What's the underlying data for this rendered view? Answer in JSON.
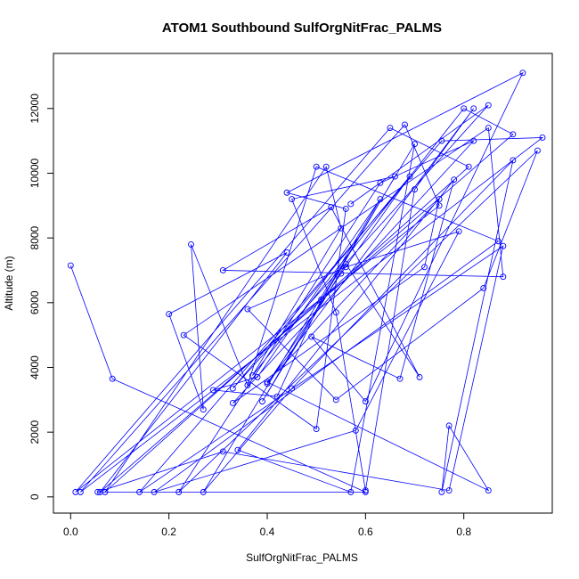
{
  "chart_data": {
    "type": "line",
    "title": "ATOM1 Southbound SulfOrgNitFrac_PALMS",
    "xlabel": "SulfOrgNitFrac_PALMS",
    "ylabel": "Altitude (m)",
    "xlim": [
      -0.035,
      0.98
    ],
    "ylim": [
      -500,
      13700
    ],
    "xticks": [
      0.0,
      0.2,
      0.4,
      0.6,
      0.8
    ],
    "xtick_labels": [
      "0.0",
      "0.2",
      "0.4",
      "0.6",
      "0.8"
    ],
    "yticks": [
      0,
      2000,
      4000,
      6000,
      8000,
      10000,
      12000
    ],
    "ytick_labels": [
      "0",
      "2000",
      "4000",
      "6000",
      "8000",
      "10000",
      "12000"
    ],
    "color": "#0000ff",
    "markers": "open-circle",
    "grid": false,
    "series": [
      {
        "x": [
          0.0,
          0.085,
          0.6,
          0.055,
          0.31,
          0.77,
          0.88,
          0.14,
          0.755,
          0.96,
          0.02,
          0.68,
          0.75,
          0.01,
          0.65,
          0.81,
          0.07,
          0.52,
          0.55,
          0.37,
          0.8,
          0.9,
          0.06,
          0.44,
          0.2,
          0.27,
          0.245,
          0.36,
          0.5,
          0.87,
          0.17,
          0.58,
          0.79,
          0.56,
          0.36,
          0.54,
          0.84,
          0.95,
          0.22,
          0.63,
          0.82,
          0.33,
          0.72,
          0.75,
          0.4,
          0.85,
          0.77,
          0.755,
          0.9,
          0.45,
          0.27,
          0.63,
          0.38,
          0.29,
          0.42,
          0.51,
          0.7,
          0.57,
          0.34,
          0.78,
          0.67,
          0.49,
          0.6,
          0.92,
          0.44,
          0.56,
          0.5,
          0.23,
          0.85,
          0.88,
          0.31,
          0.53,
          0.71,
          0.56,
          0.39,
          0.66,
          0.45,
          0.54,
          0.6,
          0.7,
          0.82,
          0.4,
          0.55,
          0.69,
          0.33,
          0.85,
          0.57
        ],
        "y": [
          7150,
          3650,
          150,
          150,
          1400,
          200,
          7750,
          150,
          11000,
          11100,
          150,
          11500,
          9000,
          150,
          11400,
          10200,
          150,
          10200,
          8300,
          3750,
          12000,
          11200,
          150,
          7550,
          5650,
          2700,
          7800,
          3450,
          10200,
          7900,
          150,
          2050,
          8200,
          7100,
          5800,
          3000,
          6450,
          10700,
          150,
          9700,
          11000,
          2900,
          7100,
          9200,
          3550,
          200,
          2200,
          150,
          10400,
          3350,
          150,
          9200,
          3700,
          3300,
          3100,
          6100,
          10900,
          150,
          1450,
          9800,
          3650,
          4950,
          2950,
          13100,
          9400,
          8900,
          2100,
          5000,
          11400,
          6800,
          7000,
          8950,
          3700,
          7200,
          2950,
          9900,
          9200,
          5700,
          200,
          9500,
          12000,
          3500,
          6900,
          9900,
          3350,
          12100,
          9050
        ]
      }
    ]
  }
}
